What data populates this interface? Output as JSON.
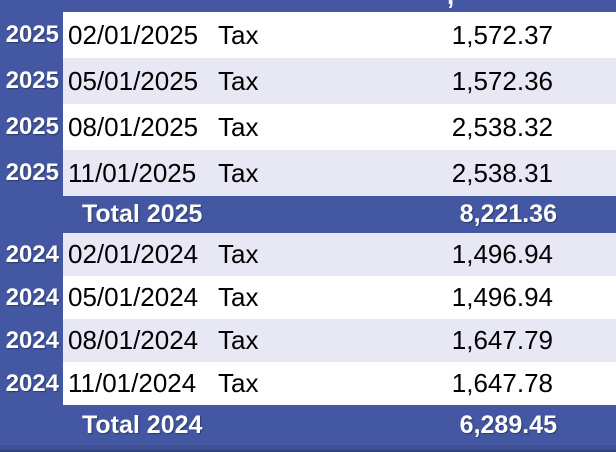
{
  "table": {
    "top_partial_row": {
      "fragment": ","
    },
    "rows": [
      {
        "year": "2025",
        "date": "02/01/2025",
        "type": "Tax",
        "amount": "1,572.37"
      },
      {
        "year": "2025",
        "date": "05/01/2025",
        "type": "Tax",
        "amount": "1,572.36"
      },
      {
        "year": "2025",
        "date": "08/01/2025",
        "type": "Tax",
        "amount": "2,538.32"
      },
      {
        "year": "2025",
        "date": "11/01/2025",
        "type": "Tax",
        "amount": "2,538.31"
      },
      {
        "year": "2024",
        "date": "02/01/2024",
        "type": "Tax",
        "amount": "1,496.94"
      },
      {
        "year": "2024",
        "date": "05/01/2024",
        "type": "Tax",
        "amount": "1,496.94"
      },
      {
        "year": "2024",
        "date": "08/01/2024",
        "type": "Tax",
        "amount": "1,647.79"
      },
      {
        "year": "2024",
        "date": "11/01/2024",
        "type": "Tax",
        "amount": "1,647.78"
      }
    ],
    "totals": [
      {
        "label": "Total 2025",
        "amount": "8,221.36"
      },
      {
        "label": "Total 2024",
        "amount": "6,289.45"
      }
    ]
  },
  "colors": {
    "blue": "#4357a2",
    "alt_row": "#e8e8f4",
    "row_white": "#ffffff",
    "bottom_strip": "#3e4f96",
    "bottom_edge": "#344077",
    "text_dark": "#000000",
    "text_white": "#ffffff"
  }
}
